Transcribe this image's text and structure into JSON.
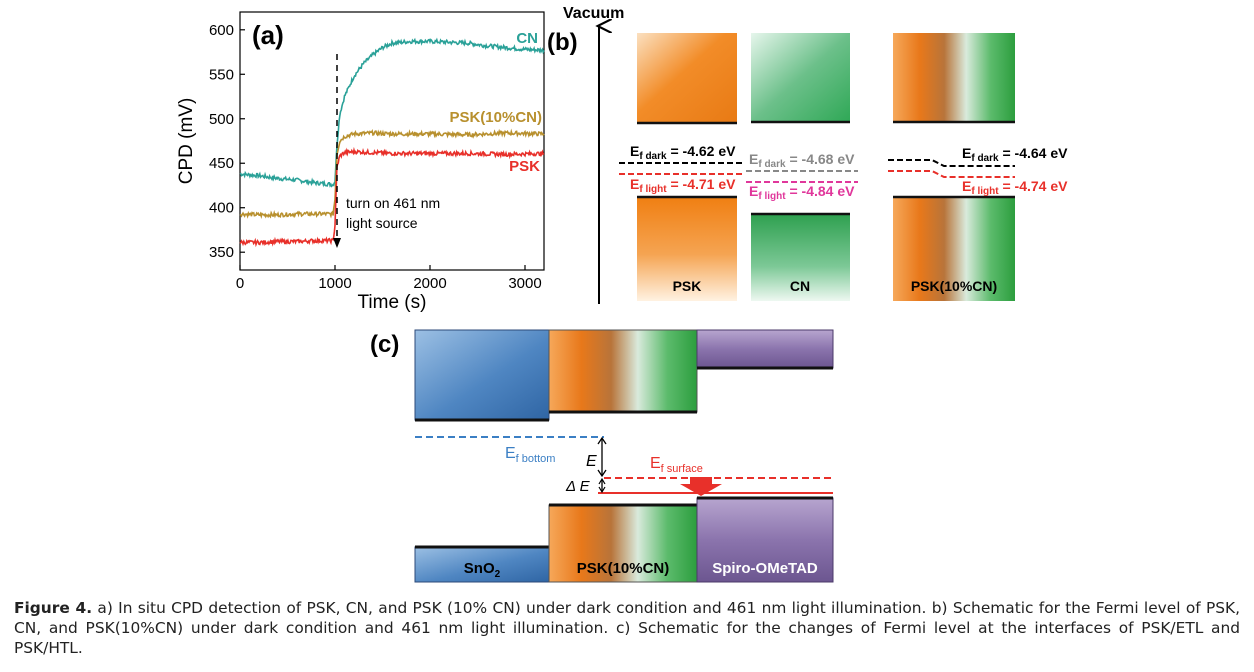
{
  "panel_a": {
    "label": "(a)",
    "ylabel": "CPD (mV)",
    "xlabel": "Time (s)",
    "annotation": [
      "turn on 461 nm",
      "light source"
    ],
    "colors": {
      "CN": "#2aa198",
      "PSK(10%CN)": "#b8902e",
      "PSK": "#e8302a"
    },
    "chart_data": {
      "type": "line",
      "title": "",
      "xlabel": "Time (s)",
      "ylabel": "CPD (mV)",
      "xlim": [
        0,
        3200
      ],
      "ylim": [
        330,
        620
      ],
      "xticks": [
        0,
        1000,
        2000,
        3000
      ],
      "yticks": [
        350,
        400,
        450,
        500,
        550,
        600
      ],
      "series": [
        {
          "name": "CN",
          "x": [
            0,
            200,
            400,
            600,
            800,
            980,
            1000,
            1020,
            1050,
            1100,
            1200,
            1300,
            1400,
            1500,
            1600,
            1800,
            2000,
            2200,
            2400,
            2600,
            2800,
            3000,
            3200
          ],
          "y": [
            438,
            436,
            433,
            431,
            428,
            426,
            430,
            470,
            505,
            525,
            548,
            562,
            572,
            580,
            585,
            587,
            587,
            586,
            585,
            582,
            580,
            578,
            577
          ]
        },
        {
          "name": "PSK(10%CN)",
          "x": [
            0,
            200,
            400,
            600,
            800,
            980,
            1000,
            1020,
            1050,
            1100,
            1200,
            1400,
            1600,
            2000,
            2400,
            2800,
            3200
          ],
          "y": [
            393,
            392,
            392,
            393,
            393,
            393,
            410,
            460,
            475,
            480,
            483,
            484,
            483,
            483,
            482,
            484,
            483
          ]
        },
        {
          "name": "PSK",
          "x": [
            0,
            200,
            400,
            600,
            800,
            980,
            1000,
            1020,
            1050,
            1100,
            1200,
            1400,
            1600,
            2000,
            2400,
            2800,
            3200
          ],
          "y": [
            361,
            361,
            362,
            362,
            363,
            363,
            380,
            445,
            458,
            462,
            463,
            462,
            461,
            461,
            461,
            460,
            461
          ]
        }
      ]
    }
  },
  "panel_b": {
    "label": "(b)",
    "vacuum": "Vacuum",
    "materials": [
      "PSK",
      "CN",
      "PSK(10%CN)"
    ],
    "levels": {
      "psk_dark": "-4.62 eV",
      "psk_light": "-4.71 eV",
      "cn_dark": "-4.68 eV",
      "cn_light": "-4.84 eV",
      "mix_dark": "-4.64 eV",
      "mix_light": "-4.74 eV"
    },
    "ef_main": "E",
    "sub_dark": "f dark",
    "sub_light": "f light",
    "eq": " = "
  },
  "panel_c": {
    "label": "(c)",
    "materials": {
      "sno2_main": "SnO",
      "sno2_sub": "2",
      "psk": "PSK(10%CN)",
      "spiro": "Spiro-OMeTAD"
    },
    "ef_bottom_main": "E",
    "ef_bottom_sub": "f bottom",
    "ef_surface_main": "E",
    "ef_surface_sub": "f surface",
    "e_label": "E",
    "delta_e_label": "Δ E"
  },
  "caption": {
    "figure": "Figure 4.",
    "text": " a) In situ CPD detection of PSK, CN, and PSK (10% CN) under dark condition and 461 nm light illumination. b) Schematic for the Fermi level of PSK, CN, and PSK(10%CN) under dark condition and 461 nm light illumination. c) Schematic for the changes of Fermi level at the interfaces of PSK/ETL and PSK/HTL."
  }
}
